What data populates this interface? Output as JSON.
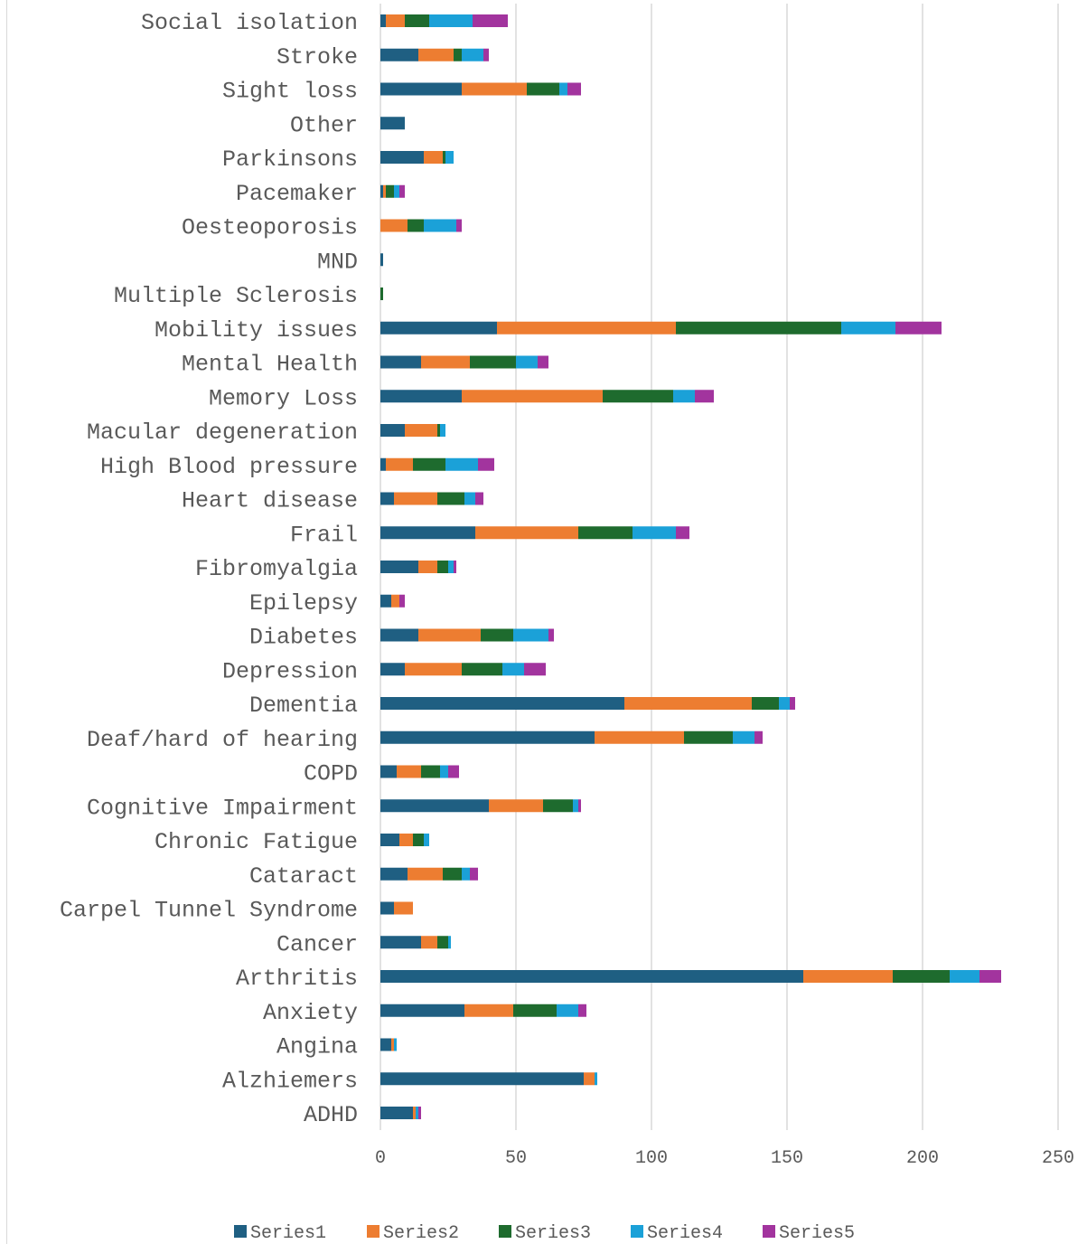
{
  "chart_data": {
    "type": "bar",
    "orientation": "horizontal",
    "stacked": true,
    "title": "",
    "xlabel": "",
    "ylabel": "",
    "xlim": [
      0,
      250
    ],
    "x_ticks": [
      0,
      50,
      100,
      150,
      200,
      250
    ],
    "grid": true,
    "legend_position": "bottom",
    "categories": [
      "Social isolation",
      "Stroke",
      "Sight loss",
      "Other",
      "Parkinsons",
      "Pacemaker",
      "Oesteoporosis",
      "MND",
      "Multiple Sclerosis",
      "Mobility issues",
      "Mental Health",
      "Memory Loss",
      "Macular degeneration",
      "High Blood pressure",
      "Heart disease",
      "Frail",
      "Fibromyalgia",
      "Epilepsy",
      "Diabetes",
      "Depression",
      "Dementia",
      "Deaf/hard of hearing",
      "COPD",
      "Cognitive Impairment",
      "Chronic Fatigue",
      "Cataract",
      "Carpel Tunnel Syndrome",
      "Cancer",
      "Arthritis",
      "Anxiety",
      "Angina",
      "Alzhiemers",
      "ADHD"
    ],
    "series": [
      {
        "name": "Series1",
        "color": "#1f5f82",
        "values": [
          2,
          14,
          30,
          9,
          16,
          1,
          0,
          1,
          0,
          43,
          15,
          30,
          9,
          2,
          5,
          35,
          14,
          4,
          14,
          9,
          90,
          79,
          6,
          40,
          7,
          10,
          5,
          15,
          156,
          31,
          4,
          75,
          12
        ]
      },
      {
        "name": "Series2",
        "color": "#ed7d31",
        "values": [
          7,
          13,
          24,
          0,
          7,
          1,
          10,
          0,
          0,
          66,
          18,
          52,
          12,
          10,
          16,
          38,
          7,
          3,
          23,
          21,
          47,
          33,
          9,
          20,
          5,
          13,
          7,
          6,
          33,
          18,
          1,
          4,
          1
        ]
      },
      {
        "name": "Series3",
        "color": "#1e6b2e",
        "values": [
          9,
          3,
          12,
          0,
          1,
          3,
          6,
          0,
          1,
          61,
          17,
          26,
          1,
          12,
          10,
          20,
          4,
          0,
          12,
          15,
          10,
          18,
          7,
          11,
          4,
          7,
          0,
          4,
          21,
          16,
          0,
          0,
          0
        ]
      },
      {
        "name": "Series4",
        "color": "#1ba1d8",
        "values": [
          16,
          8,
          3,
          0,
          3,
          2,
          12,
          0,
          0,
          20,
          8,
          8,
          2,
          12,
          4,
          16,
          2,
          0,
          13,
          8,
          4,
          8,
          3,
          2,
          2,
          3,
          0,
          1,
          11,
          8,
          1,
          1,
          1
        ]
      },
      {
        "name": "Series5",
        "color": "#a2349e",
        "values": [
          13,
          2,
          5,
          0,
          0,
          2,
          2,
          0,
          0,
          17,
          4,
          7,
          0,
          6,
          3,
          5,
          1,
          2,
          2,
          8,
          2,
          3,
          4,
          1,
          0,
          3,
          0,
          0,
          8,
          3,
          0,
          0,
          1
        ]
      }
    ]
  }
}
